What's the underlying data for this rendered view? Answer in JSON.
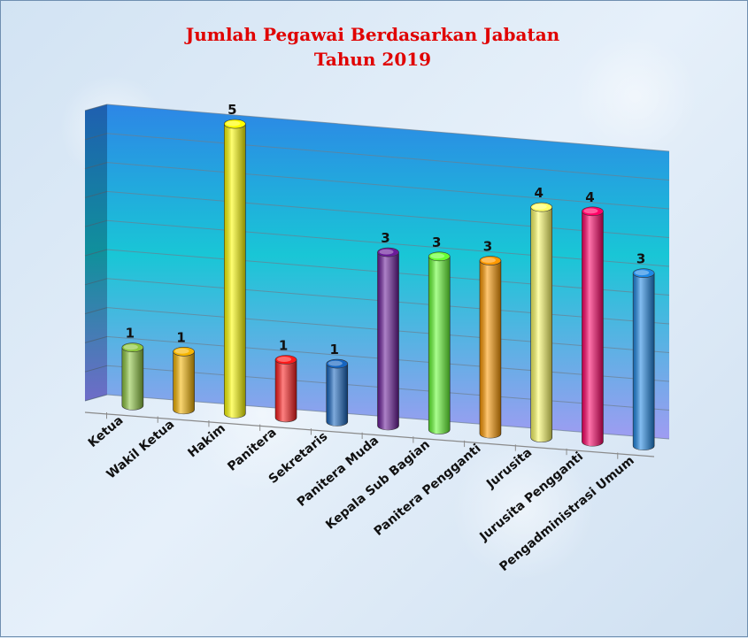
{
  "chart_data": {
    "type": "bar",
    "title": "Jumlah Pegawai Berdasarkan Jabatan",
    "subtitle": "Tahun 2019",
    "categories": [
      "Ketua",
      "Wakil Ketua",
      "Hakim",
      "Panitera",
      "Sekretaris",
      "Panitera Muda",
      "Kepala Sub Bagian",
      "Panitera Pengganti",
      "Jurusita",
      "Jurusita Pengganti",
      "Pengadministrasi Umum"
    ],
    "values": [
      1,
      1,
      5,
      1,
      1,
      3,
      3,
      3,
      4,
      4,
      3
    ],
    "colors": [
      "#8dc63f",
      "#f7b500",
      "#ffff00",
      "#ff1a1a",
      "#1565c0",
      "#6a1b9a",
      "#66ff33",
      "#ff9900",
      "#ffff66",
      "#ff0066",
      "#1e88e5"
    ],
    "xlabel": "",
    "ylabel": "",
    "grid": true,
    "legend": "none",
    "three_d": true
  }
}
